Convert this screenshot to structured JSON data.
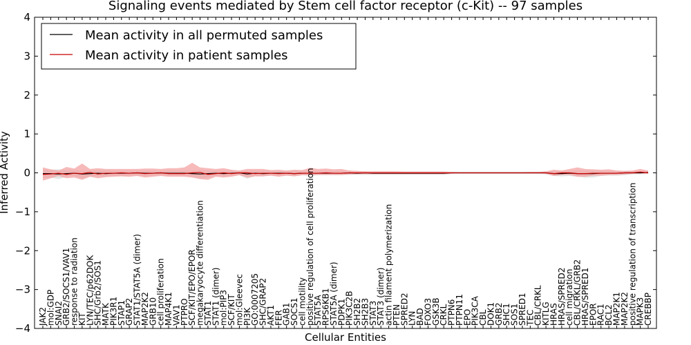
{
  "chart_data": {
    "type": "line",
    "title": "Signaling events mediated by Stem cell factor receptor (c-Kit) -- 97 samples",
    "xlabel": "Cellular Entities",
    "ylabel": "Inferred Activity",
    "ylim": [
      -4,
      4
    ],
    "yticks": [
      -4,
      -3,
      -2,
      -1,
      0,
      1,
      2,
      3,
      4
    ],
    "ytick_labels": [
      "−4",
      "−3",
      "−2",
      "−1",
      "0",
      "1",
      "2",
      "3",
      "4"
    ],
    "grid": false,
    "legend_position": "top-left",
    "categories": [
      "JAK2",
      "mol:GDP",
      "SNAI2",
      "GRB2/SOCS1/VAV1",
      "response to radiation",
      "KIT",
      "LYN/TEC/p62DOK",
      "SHC/Grb2/SOS1",
      "MATK",
      "PIK3R1",
      "STAP1",
      "GRAP2",
      "STAT1/STAT5A (dimer)",
      "MAP2K2",
      "GRB10",
      "cell proliferation",
      "MAP4K1",
      "VAV1",
      "PTPRO",
      "SCF/KIT/EPO/EPOR",
      "megakaryocyte differentiation",
      "STAT1",
      "STAT1 (dimer)",
      "mol:PIP3",
      "SCF/KIT",
      "mol:Gleevec",
      "PI3K",
      "GO:0007205",
      "SHC/GRAP2",
      "AKT1",
      "FER",
      "GAB1",
      "SOCS1",
      "cell motility",
      "positive regulation of cell proliferation",
      "STAT5A",
      "RPS6KB1",
      "STAT5A (dimer)",
      "PDPK1",
      "PIK3C2B",
      "SH2B2",
      "SH2B3",
      "STAT3",
      "STAT3 (dimer)",
      "actin filament polymerization",
      "PTEN",
      "SPRED2",
      "LYN",
      "BAD",
      "FOXO3",
      "GSK3B",
      "CRKL",
      "PTPN6",
      "PTPN11",
      "EPO",
      "PIK3CA",
      "CBL",
      "DOK1",
      "GRB2",
      "SHC1",
      "SOS1",
      "SPRED1",
      "TEC",
      "CBL/CRKL",
      "KITLG",
      "HRAS",
      "HRAS/SPRED2",
      "cell migration",
      "CBL/CRKL/GRB2",
      "HRAS/SPRED1",
      "EPOR",
      "RAC1",
      "BCL2",
      "MAP2K1",
      "MAP2K2",
      "positive regulation of transcription",
      "MAPK3",
      "CREBBP"
    ],
    "series": [
      {
        "name": "Mean activity in all permuted samples",
        "color": "#000000",
        "values": [
          -0.02,
          -0.02,
          -0.03,
          -0.02,
          -0.01,
          -0.03,
          -0.02,
          -0.01,
          -0.02,
          -0.01,
          -0.01,
          -0.01,
          0.0,
          -0.01,
          -0.01,
          0.0,
          -0.01,
          -0.01,
          -0.01,
          -0.02,
          -0.03,
          -0.02,
          -0.01,
          -0.02,
          -0.01,
          0.0,
          -0.03,
          -0.01,
          -0.02,
          -0.01,
          -0.01,
          -0.01,
          -0.02,
          -0.01,
          -0.01,
          -0.01,
          -0.01,
          -0.01,
          -0.01,
          0.0,
          -0.01,
          0.0,
          -0.01,
          -0.01,
          -0.01,
          -0.01,
          -0.01,
          -0.01,
          -0.01,
          -0.01,
          -0.01,
          -0.01,
          0.0,
          0.0,
          0.0,
          0.0,
          0.0,
          0.0,
          0.0,
          0.0,
          0.0,
          0.0,
          0.0,
          0.0,
          0.0,
          -0.02,
          -0.02,
          -0.01,
          -0.02,
          -0.02,
          -0.02,
          -0.01,
          -0.01,
          -0.01,
          0.0,
          0.0,
          0.0,
          0.01
        ],
        "band_low": [
          -0.14,
          -0.12,
          -0.16,
          -0.1,
          -0.08,
          -0.15,
          -0.1,
          -0.09,
          -0.1,
          -0.08,
          -0.08,
          -0.08,
          -0.07,
          -0.09,
          -0.08,
          -0.06,
          -0.08,
          -0.08,
          -0.08,
          -0.1,
          -0.15,
          -0.12,
          -0.08,
          -0.1,
          -0.08,
          -0.06,
          -0.15,
          -0.08,
          -0.09,
          -0.07,
          -0.08,
          -0.07,
          -0.08,
          -0.06,
          -0.07,
          -0.06,
          -0.06,
          -0.06,
          -0.06,
          -0.05,
          -0.05,
          -0.05,
          -0.05,
          -0.05,
          -0.05,
          -0.05,
          -0.05,
          -0.05,
          -0.05,
          -0.05,
          -0.05,
          -0.05,
          -0.03,
          -0.03,
          -0.03,
          -0.03,
          -0.03,
          -0.03,
          -0.03,
          -0.03,
          -0.03,
          -0.03,
          -0.03,
          -0.03,
          -0.04,
          -0.08,
          -0.09,
          -0.08,
          -0.1,
          -0.12,
          -0.12,
          -0.08,
          -0.07,
          -0.07,
          -0.06,
          -0.04,
          -0.04,
          -0.03
        ],
        "band_high": [
          0.1,
          0.08,
          0.09,
          0.07,
          0.07,
          0.06,
          0.07,
          0.07,
          0.07,
          0.06,
          0.06,
          0.06,
          0.06,
          0.06,
          0.06,
          0.05,
          0.06,
          0.06,
          0.06,
          0.06,
          0.07,
          0.06,
          0.06,
          0.06,
          0.06,
          0.05,
          0.06,
          0.06,
          0.06,
          0.05,
          0.05,
          0.05,
          0.05,
          0.05,
          0.05,
          0.05,
          0.05,
          0.05,
          0.05,
          0.05,
          0.04,
          0.04,
          0.04,
          0.04,
          0.04,
          0.04,
          0.04,
          0.04,
          0.04,
          0.04,
          0.04,
          0.04,
          0.03,
          0.03,
          0.03,
          0.03,
          0.03,
          0.03,
          0.03,
          0.03,
          0.03,
          0.03,
          0.03,
          0.03,
          0.03,
          0.05,
          0.06,
          0.05,
          0.06,
          0.06,
          0.06,
          0.05,
          0.05,
          0.05,
          0.05,
          0.04,
          0.04,
          0.04
        ],
        "band_color": "#dddddd"
      },
      {
        "name": "Mean activity in patient samples",
        "color": "#cc0000",
        "values": [
          -0.04,
          -0.03,
          -0.01,
          -0.04,
          -0.01,
          -0.02,
          0.01,
          -0.03,
          -0.01,
          -0.01,
          0.0,
          -0.01,
          0.0,
          -0.02,
          -0.01,
          0.0,
          -0.02,
          -0.02,
          -0.02,
          0.0,
          0.01,
          -0.04,
          -0.02,
          0.0,
          -0.02,
          0.0,
          0.0,
          -0.02,
          -0.01,
          -0.01,
          -0.02,
          -0.01,
          -0.02,
          -0.01,
          -0.01,
          -0.01,
          0.0,
          -0.01,
          -0.01,
          0.0,
          0.0,
          0.0,
          0.0,
          0.0,
          0.0,
          0.0,
          0.0,
          0.0,
          0.0,
          0.0,
          0.0,
          0.0,
          0.0,
          0.0,
          0.0,
          0.0,
          0.0,
          0.0,
          0.0,
          0.0,
          0.0,
          0.0,
          0.0,
          0.0,
          0.0,
          -0.02,
          0.0,
          0.0,
          -0.02,
          -0.02,
          -0.01,
          -0.01,
          -0.01,
          -0.01,
          0.0,
          0.0,
          0.02,
          0.0
        ],
        "band_low": [
          -0.2,
          -0.14,
          -0.08,
          -0.14,
          -0.12,
          -0.18,
          -0.1,
          -0.14,
          -0.11,
          -0.1,
          -0.09,
          -0.1,
          -0.08,
          -0.12,
          -0.1,
          -0.08,
          -0.1,
          -0.1,
          -0.1,
          -0.12,
          -0.16,
          -0.18,
          -0.1,
          -0.12,
          -0.1,
          -0.06,
          -0.12,
          -0.09,
          -0.09,
          -0.07,
          -0.1,
          -0.07,
          -0.09,
          -0.06,
          -0.06,
          -0.05,
          -0.05,
          -0.05,
          -0.05,
          -0.04,
          -0.03,
          -0.03,
          -0.03,
          -0.03,
          -0.03,
          -0.03,
          -0.03,
          -0.03,
          -0.03,
          -0.03,
          -0.03,
          -0.03,
          -0.02,
          -0.01,
          -0.01,
          -0.01,
          -0.01,
          -0.01,
          -0.01,
          -0.01,
          -0.01,
          -0.01,
          -0.01,
          -0.01,
          -0.02,
          -0.08,
          -0.05,
          -0.05,
          -0.1,
          -0.1,
          -0.07,
          -0.07,
          -0.05,
          -0.05,
          -0.04,
          -0.02,
          -0.02,
          -0.02
        ],
        "band_high": [
          0.14,
          0.09,
          0.06,
          0.15,
          0.11,
          0.24,
          0.1,
          0.12,
          0.1,
          0.1,
          0.1,
          0.1,
          0.1,
          0.11,
          0.11,
          0.1,
          0.12,
          0.12,
          0.14,
          0.26,
          0.14,
          0.12,
          0.1,
          0.12,
          0.08,
          0.06,
          0.1,
          0.1,
          0.1,
          0.07,
          0.08,
          0.06,
          0.08,
          0.07,
          0.13,
          0.1,
          0.11,
          0.09,
          0.1,
          0.06,
          0.05,
          0.04,
          0.04,
          0.04,
          0.04,
          0.04,
          0.03,
          0.03,
          0.03,
          0.03,
          0.03,
          0.03,
          0.02,
          0.01,
          0.01,
          0.01,
          0.01,
          0.01,
          0.01,
          0.01,
          0.01,
          0.01,
          0.02,
          0.02,
          0.04,
          0.08,
          0.06,
          0.1,
          0.14,
          0.1,
          0.09,
          0.08,
          0.09,
          0.06,
          0.05,
          0.06,
          0.1,
          0.06
        ],
        "band_color": "#f4a3a3"
      }
    ]
  }
}
